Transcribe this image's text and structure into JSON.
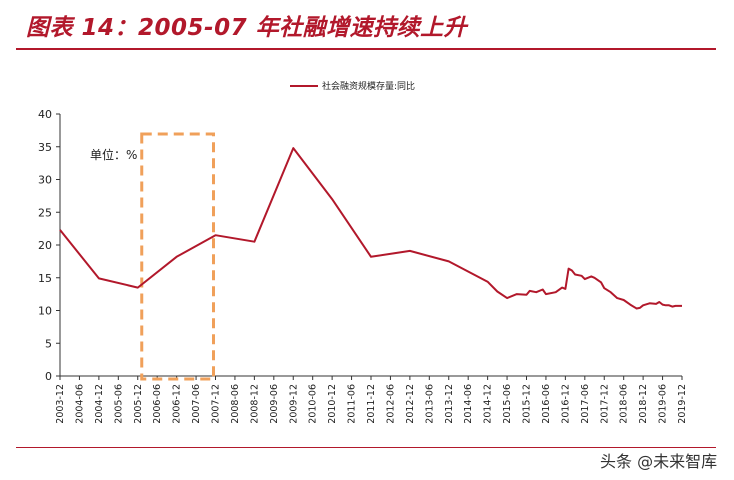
{
  "header": {
    "title": "图表 14：2005-07 年社融增速持续上升"
  },
  "watermark": {
    "text": "头条 @未来智库"
  },
  "chart_data": {
    "type": "line",
    "title": "",
    "xlabel": "",
    "ylabel": "",
    "ylim": [
      0,
      40
    ],
    "yticks": [
      0,
      5,
      10,
      15,
      20,
      25,
      30,
      35,
      40
    ],
    "x_ticks": [
      "2003-12",
      "2004-06",
      "2004-12",
      "2005-06",
      "2005-12",
      "2006-06",
      "2006-12",
      "2007-06",
      "2007-12",
      "2008-06",
      "2008-12",
      "2009-06",
      "2009-12",
      "2010-06",
      "2010-12",
      "2011-06",
      "2011-12",
      "2012-06",
      "2012-12",
      "2013-06",
      "2013-12",
      "2014-06",
      "2014-12",
      "2015-06",
      "2015-12",
      "2016-06",
      "2016-12",
      "2017-06",
      "2017-12",
      "2018-06",
      "2018-12",
      "2019-06",
      "2019-12"
    ],
    "legend": {
      "placement": "top-center"
    },
    "grid": false,
    "annotation": {
      "text": "单位：%",
      "highlight_x_range": [
        "2005-12",
        "2007-12"
      ],
      "highlight_color": "#f0a05a"
    },
    "series": [
      {
        "name": "社会融资规模存量:同比",
        "color": "#b2182b",
        "x": [
          "2003-12",
          "2004-12",
          "2005-12",
          "2006-12",
          "2007-12",
          "2008-12",
          "2009-12",
          "2010-12",
          "2011-12",
          "2012-12",
          "2013-12",
          "2014-12",
          "2015-03",
          "2015-06",
          "2015-09",
          "2015-12",
          "2016-01",
          "2016-03",
          "2016-05",
          "2016-06",
          "2016-09",
          "2016-11",
          "2016-12",
          "2017-01",
          "2017-02",
          "2017-03",
          "2017-05",
          "2017-06",
          "2017-08",
          "2017-09",
          "2017-11",
          "2017-12",
          "2018-02",
          "2018-04",
          "2018-06",
          "2018-08",
          "2018-10",
          "2018-11",
          "2018-12",
          "2019-02",
          "2019-04",
          "2019-05",
          "2019-06",
          "2019-07",
          "2019-08",
          "2019-09",
          "2019-10",
          "2019-11",
          "2019-12"
        ],
        "y": [
          22.3,
          14.9,
          13.5,
          18.2,
          21.5,
          20.5,
          34.8,
          27.0,
          18.2,
          19.1,
          17.5,
          14.4,
          12.9,
          11.9,
          12.5,
          12.4,
          13.0,
          12.8,
          13.2,
          12.5,
          12.8,
          13.5,
          13.3,
          16.4,
          16.1,
          15.5,
          15.3,
          14.8,
          15.2,
          15.0,
          14.3,
          13.4,
          12.8,
          11.9,
          11.6,
          10.9,
          10.3,
          10.4,
          10.8,
          11.1,
          11.0,
          11.3,
          10.9,
          10.8,
          10.8,
          10.6,
          10.7,
          10.7,
          10.7
        ]
      }
    ]
  }
}
